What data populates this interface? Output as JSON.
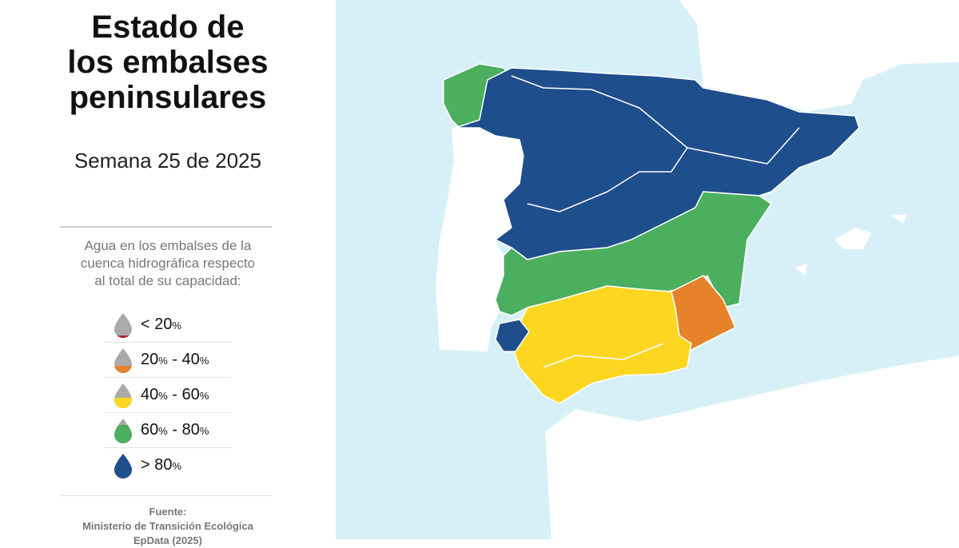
{
  "title": [
    "Estado de",
    "los embalses",
    "peninsulares"
  ],
  "subtitle": "Semana 25 de 2025",
  "legend": {
    "caption": [
      "Agua en los embalses de la",
      "cuenca hidrográfica respecto",
      "al total de su capacidad:"
    ],
    "items": [
      {
        "label": "< 20%",
        "color": "#b3202a"
      },
      {
        "label": "20% - 40%",
        "color": "#e5822a"
      },
      {
        "label": "40% - 60%",
        "color": "#fdd622"
      },
      {
        "label": "60% - 80%",
        "color": "#4caf5f"
      },
      {
        "label": "> 80%",
        "color": "#1f4e8c"
      }
    ]
  },
  "source": [
    "Fuente:",
    "Ministerio de Transición Ecológica",
    "EpData (2025)"
  ]
}
